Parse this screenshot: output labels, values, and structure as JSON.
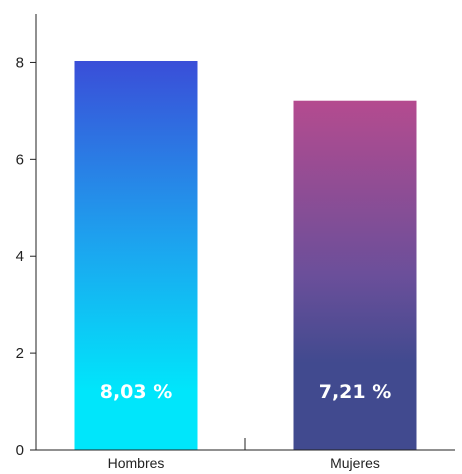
{
  "chart_data": {
    "type": "bar",
    "categories": [
      "Hombres",
      "Mujeres"
    ],
    "values": [
      8.03,
      7.21
    ],
    "data_labels": [
      "8,03 %",
      "7,21 %"
    ],
    "ylim": [
      0,
      9
    ],
    "yticks": [
      0,
      2,
      4,
      6,
      8
    ],
    "title": "",
    "xlabel": "",
    "ylabel": "",
    "grid": false,
    "colors": {
      "Hombres": {
        "top": "#3a4ed8",
        "mid": "#1ea0ee",
        "bottom": "#00e6fb"
      },
      "Mujeres": {
        "top": "#b44b8f",
        "mid": "#6b4f9a",
        "bottom": "#414a8f"
      }
    }
  }
}
